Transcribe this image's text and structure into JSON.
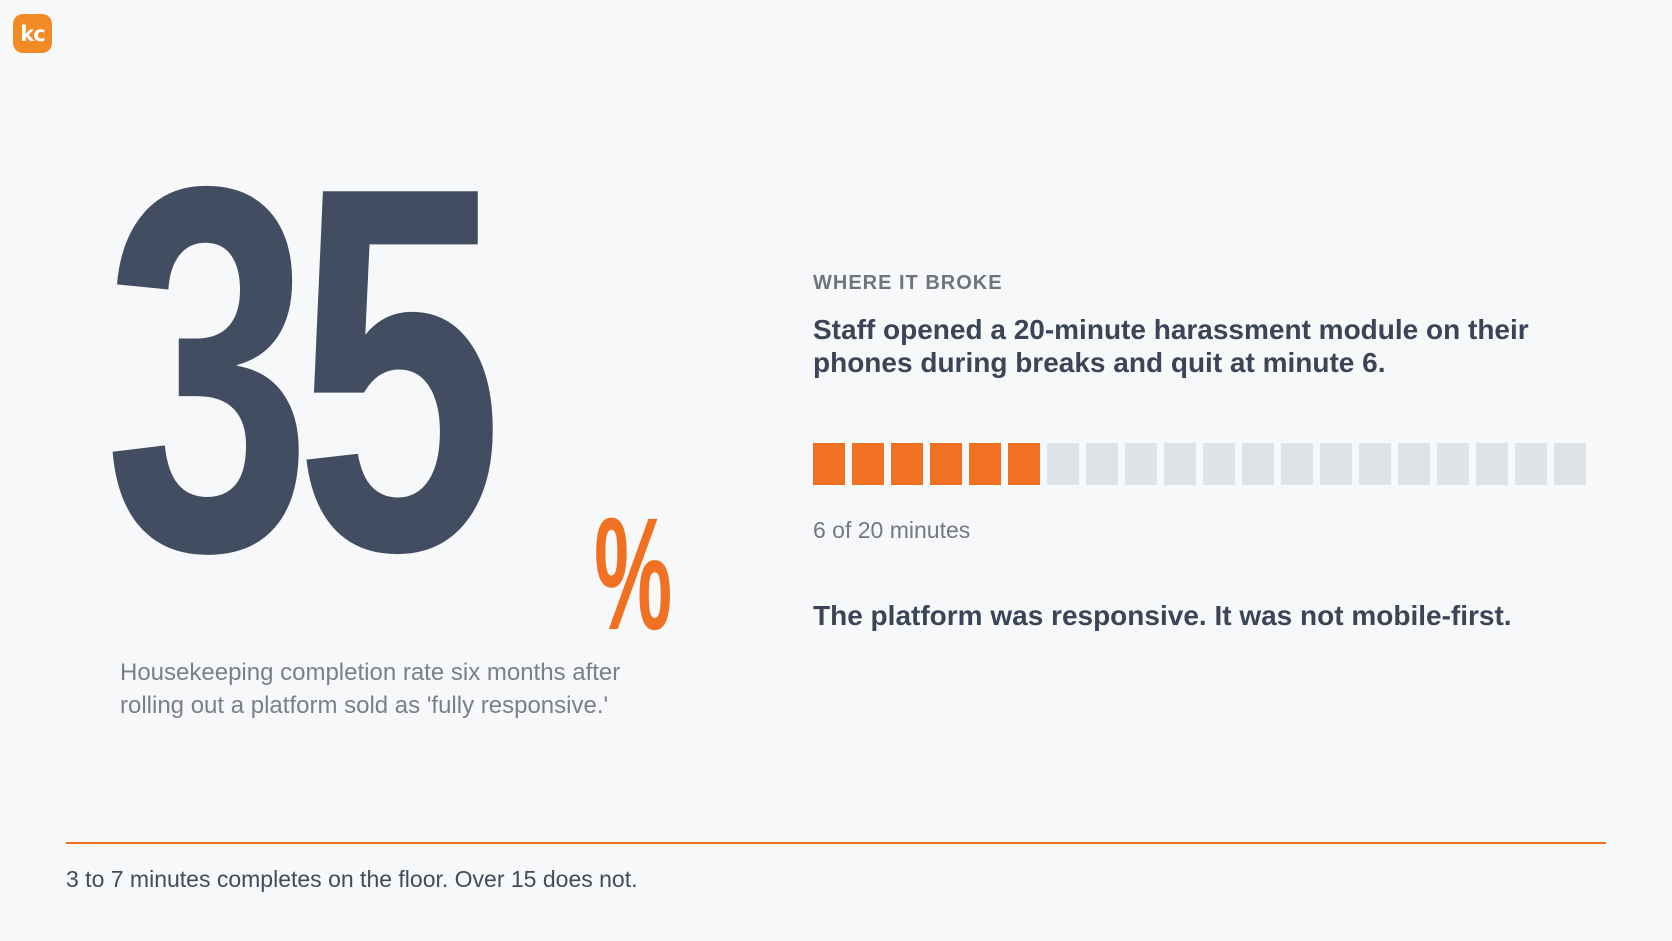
{
  "logo": {
    "text": "kc",
    "color": "#f28a26"
  },
  "stat": {
    "number": "35",
    "unit": "%",
    "caption": "Housekeeping completion rate six months after rolling out a platform sold as 'fully responsive.'",
    "number_color": "#434d61",
    "unit_color": "#f07121"
  },
  "detail": {
    "eyebrow": "WHERE IT BROKE",
    "headline": "Staff opened a 20-minute harassment module on their phones during breaks and quit at minute 6.",
    "progress": {
      "completed_minutes": 6,
      "total_minutes": 20,
      "label": "6 of 20 minutes",
      "filled_color": "#f07121",
      "empty_color": "#dfe2e7"
    },
    "takeaway": "The platform was responsive. It was not mobile-first."
  },
  "footer": {
    "text": "3 to 7 minutes completes on the floor. Over 15 does not.",
    "rule_color": "#f07121"
  }
}
